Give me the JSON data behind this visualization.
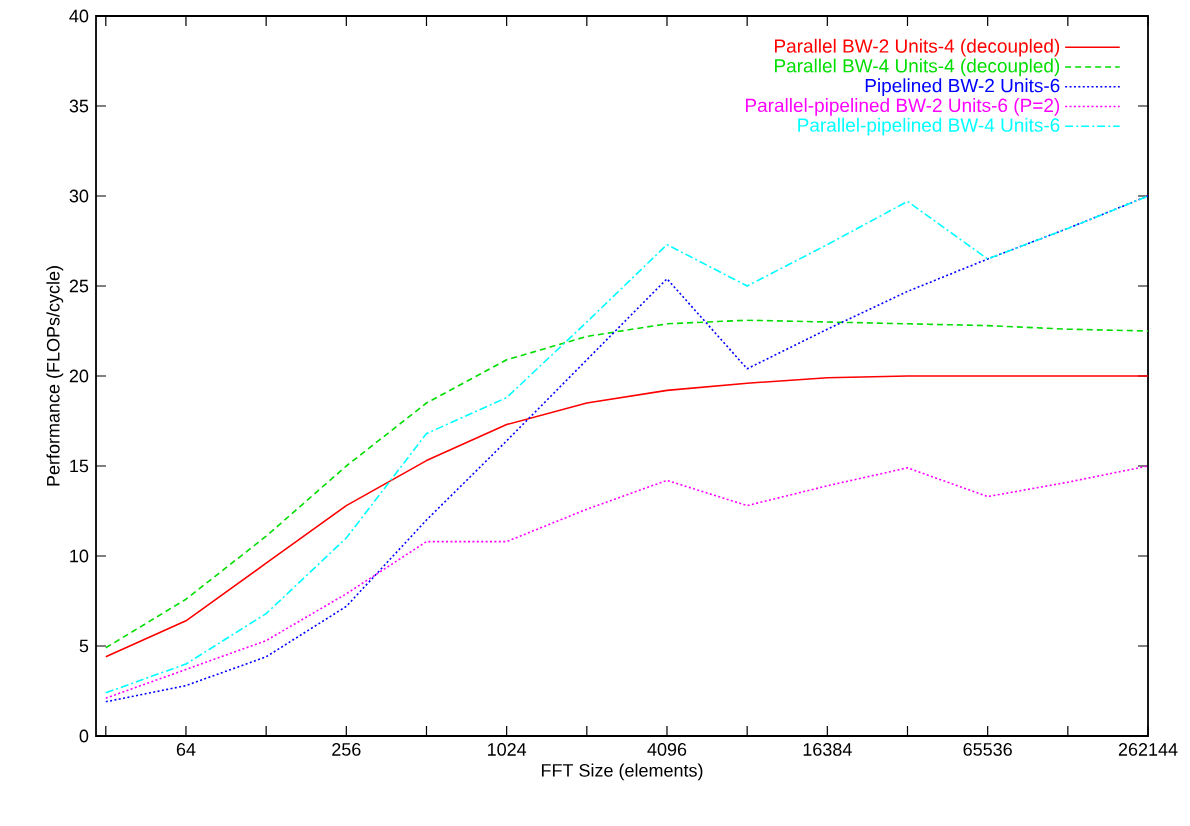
{
  "chart_data": {
    "type": "line",
    "xlabel": "FFT Size (elements)",
    "ylabel": "Performance (FLOPs/cycle)",
    "log": "x",
    "legend": "top right",
    "grid": false,
    "x": [
      32,
      64,
      128,
      256,
      512,
      1024,
      2048,
      4096,
      8192,
      16384,
      32768,
      65536,
      131072,
      262144
    ],
    "xlim": [
      29.4,
      262144
    ],
    "ylim": [
      0,
      40
    ],
    "xticks": [
      {
        "value": 32,
        "label": null
      },
      64,
      {
        "value": 128,
        "label": null
      },
      256,
      {
        "value": 512,
        "label": null
      },
      1024,
      {
        "value": 2048,
        "label": null
      },
      4096,
      {
        "value": 8192,
        "label": null
      },
      16384,
      {
        "value": 32768,
        "label": null
      },
      65536,
      {
        "value": 131072,
        "label": null
      },
      262144
    ],
    "yticks": [
      0,
      5,
      10,
      15,
      20,
      25,
      30,
      35,
      40
    ],
    "series": [
      {
        "name": "Parallel BW-2 Units-4 (decoupled)",
        "color": "#ff0000",
        "line_style": "solid",
        "values": [
          4.4,
          6.4,
          9.6,
          12.8,
          15.3,
          17.3,
          18.5,
          19.2,
          19.6,
          19.9,
          20,
          20,
          20,
          20
        ]
      },
      {
        "name": "Parallel BW-4 Units-4 (decoupled)",
        "color": "#00dd00",
        "line_style": "dashed",
        "values": [
          4.9,
          7.6,
          11.1,
          15,
          18.5,
          20.9,
          22.2,
          22.9,
          23.1,
          23,
          22.9,
          22.8,
          22.6,
          22.5
        ]
      },
      {
        "name": "Pipelined BW-2 Units-6",
        "color": "#0000ff",
        "line_style": "dotted",
        "values": [
          1.9,
          2.8,
          4.4,
          7.2,
          12,
          16.4,
          20.9,
          25.4,
          20.4,
          22.6,
          24.7,
          26.5,
          28.2,
          30
        ]
      },
      {
        "name": "Parallel-pipelined BW-2 Units-6 (P=2)",
        "color": "#ff00ff",
        "line_style": "dotted",
        "values": [
          2.1,
          3.7,
          5.3,
          7.9,
          10.8,
          10.8,
          12.6,
          14.2,
          12.8,
          13.9,
          14.9,
          13.3,
          14.1,
          15
        ]
      },
      {
        "name": "Parallel-pipelined BW-4 Units-6",
        "color": "#00ffff",
        "line_style": "dashdot",
        "values": [
          2.4,
          4,
          6.8,
          11,
          16.8,
          18.8,
          23,
          27.3,
          25,
          27.3,
          29.7,
          26.5,
          28.2,
          30
        ]
      }
    ]
  }
}
